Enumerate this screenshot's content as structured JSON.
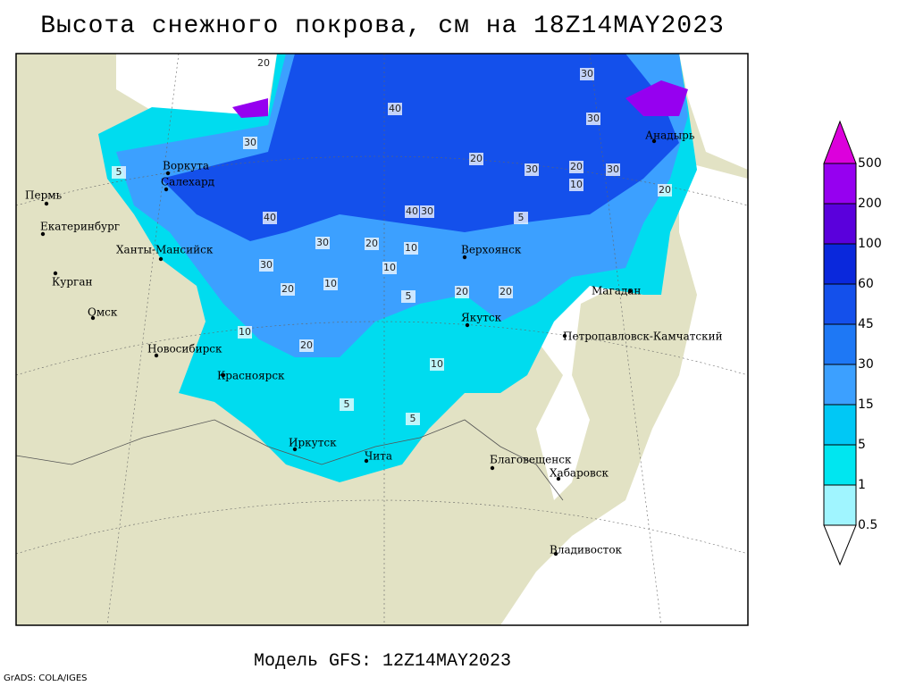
{
  "title": "Высота снежного покрова, см на 18Z14MAY2023",
  "footer": "Модель GFS: 12Z14MAY2023",
  "credit": "GrADS: COLA/IGES",
  "legend": {
    "levels": [
      0.5,
      1,
      5,
      15,
      30,
      45,
      60,
      100,
      200,
      500
    ],
    "colors": [
      "#ffffff",
      "#a0f5ff",
      "#00e6f0",
      "#00c8f5",
      "#3ca0ff",
      "#1e78f5",
      "#1450eb",
      "#0a28dc",
      "#5a00dc",
      "#9600f0",
      "#dc00dc"
    ]
  },
  "cities": [
    "Пермь",
    "Екатеринбург",
    "Курган",
    "Омск",
    "Новосибирск",
    "Красноярск",
    "Иркутск",
    "Чита",
    "Благовещенск",
    "Хабаровск",
    "Владивосток",
    "Якутск",
    "Верхоянск",
    "Магадан",
    "Петропавловск-Камчатский",
    "Анадырь",
    "Ханты-Мансийск",
    "Воркута",
    "Салехард"
  ],
  "contour_labels": [
    20,
    40,
    30,
    30,
    30,
    20,
    30,
    20,
    30,
    10,
    20,
    40,
    40,
    30,
    30,
    20,
    10,
    30,
    10,
    20,
    10,
    20,
    20,
    5,
    10,
    20,
    10,
    5,
    5,
    5,
    5
  ]
}
